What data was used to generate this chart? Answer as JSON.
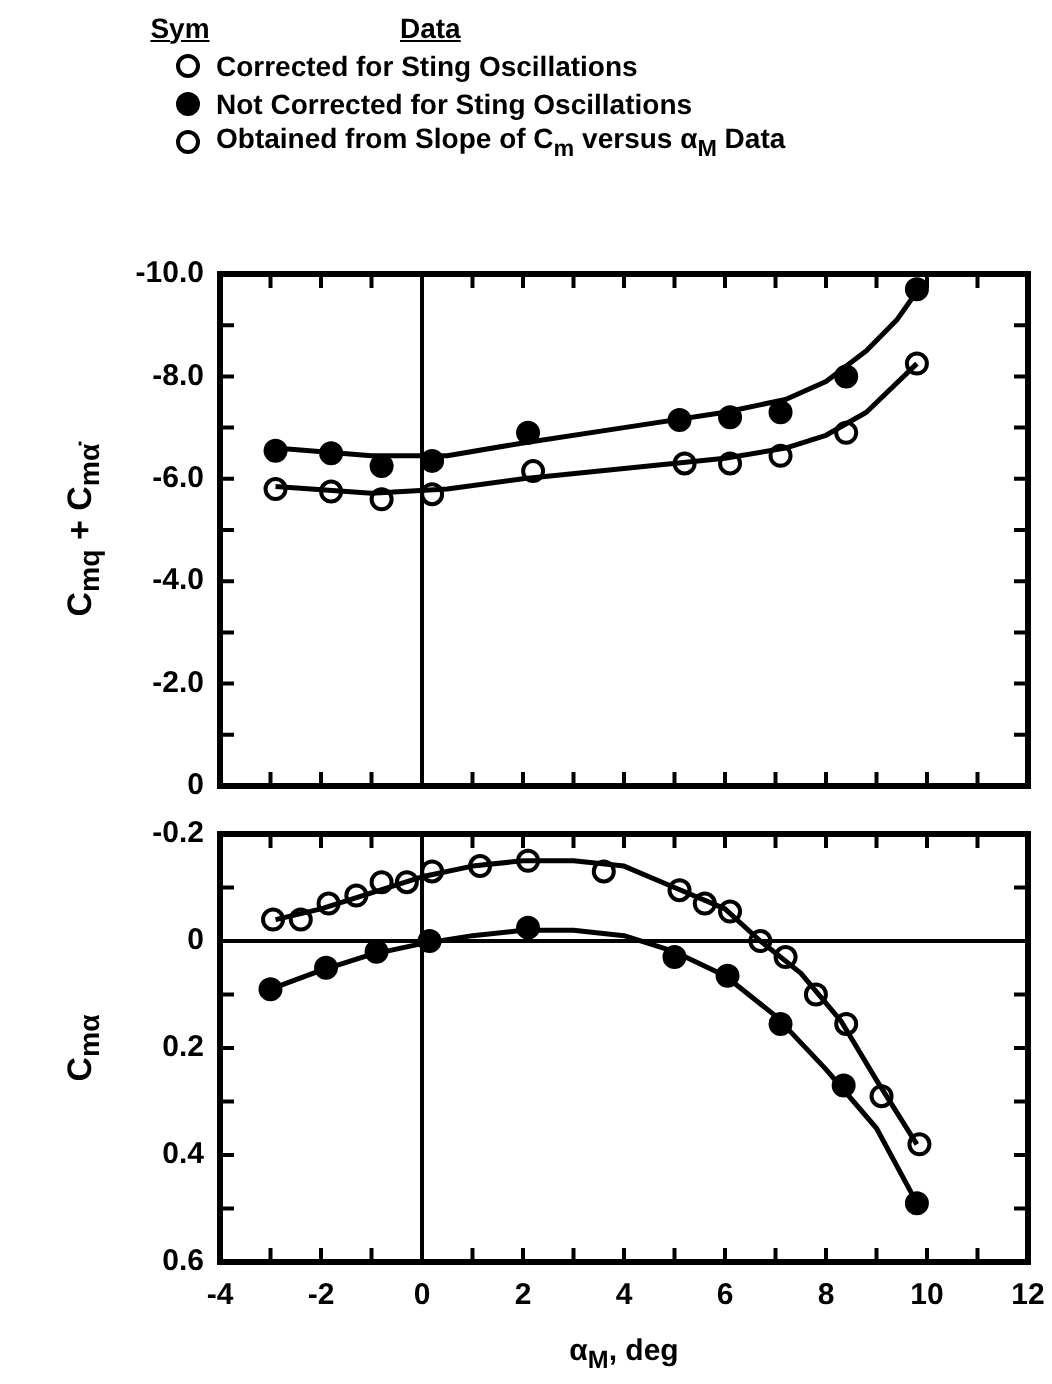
{
  "chart_data": [
    {
      "type": "scatter",
      "ylabel": "C$_{mq}$ + C$_{mα̇}$",
      "xlim": [
        -4,
        12
      ],
      "ylim": [
        0,
        -10
      ],
      "tick_labels": "y",
      "marker": "circle",
      "xticks": [
        -4,
        {
          "value": -3,
          "label": null
        },
        -2,
        {
          "value": -1,
          "label": null
        },
        0,
        {
          "value": 1,
          "label": null
        },
        2,
        {
          "value": 3,
          "label": null
        },
        4,
        {
          "value": 5,
          "label": null
        },
        6,
        {
          "value": 7,
          "label": null
        },
        8,
        {
          "value": 9,
          "label": null
        },
        10,
        {
          "value": 11,
          "label": null
        },
        12
      ],
      "yticks": [
        0,
        {
          "value": -1,
          "label": null
        },
        {
          "value": -2,
          "label": "-2.0"
        },
        {
          "value": -3,
          "label": null
        },
        {
          "value": -4,
          "label": "-4.0"
        },
        {
          "value": -5,
          "label": null
        },
        {
          "value": -6,
          "label": "-6.0"
        },
        {
          "value": -7,
          "label": null
        },
        {
          "value": -8,
          "label": "-8.0"
        },
        {
          "value": -9,
          "label": null
        },
        {
          "value": -10,
          "label": "-10.0"
        }
      ],
      "ref_lines": [
        {
          "axis": "x",
          "value": 0,
          "color": "#000000"
        }
      ],
      "series": [
        {
          "type": "line",
          "color": "#000000",
          "marker": "none",
          "x": [
            -2.9,
            -1,
            0.5,
            2,
            4,
            6,
            7.2,
            8,
            8.8,
            9.4,
            9.9
          ],
          "values": [
            -6.6,
            -6.45,
            -6.45,
            -6.7,
            -7.0,
            -7.3,
            -7.55,
            -7.9,
            -8.5,
            -9.1,
            -9.8
          ]
        },
        {
          "type": "line",
          "color": "#000000",
          "marker": "none",
          "x": [
            -2.9,
            -1,
            0.5,
            2,
            4,
            6,
            7.2,
            8,
            8.8,
            9.8
          ],
          "values": [
            -5.85,
            -5.72,
            -5.8,
            -6.0,
            -6.2,
            -6.4,
            -6.6,
            -6.85,
            -7.3,
            -8.25
          ]
        },
        {
          "color": "#000000",
          "x": [
            -2.9,
            -1.8,
            -0.8,
            0.2,
            2.1,
            5.1,
            6.1,
            7.1,
            8.4,
            9.8
          ],
          "values": [
            -6.55,
            -6.5,
            -6.25,
            -6.35,
            -6.9,
            -7.15,
            -7.2,
            -7.3,
            -8.0,
            -9.7
          ]
        },
        {
          "color": "#ffffff",
          "x": [
            -2.9,
            -1.8,
            -0.8,
            0.2,
            2.2,
            5.2,
            6.1,
            7.1,
            8.4,
            9.8
          ],
          "values": [
            -5.8,
            -5.75,
            -5.6,
            -5.7,
            -6.15,
            -6.3,
            -6.3,
            -6.45,
            -6.9,
            -8.25
          ]
        }
      ]
    },
    {
      "type": "scatter",
      "xlabel": "α$_{M}$, deg",
      "ylabel": "C$_{mα}$",
      "xlim": [
        -4,
        12
      ],
      "ylim": [
        0.6,
        -0.2
      ],
      "marker": "circle",
      "legend": "top",
      "legend_title": "Sym",
      "annotations": [
        "Data"
      ],
      "xticks": [
        -4,
        {
          "value": -3,
          "label": null
        },
        -2,
        {
          "value": -1,
          "label": null
        },
        0,
        {
          "value": 1,
          "label": null
        },
        2,
        {
          "value": 3,
          "label": null
        },
        4,
        {
          "value": 5,
          "label": null
        },
        6,
        {
          "value": 7,
          "label": null
        },
        8,
        {
          "value": 9,
          "label": null
        },
        10,
        {
          "value": 11,
          "label": null
        },
        12
      ],
      "yticks": [
        {
          "value": -0.2,
          "label": "-0.2"
        },
        {
          "value": -0.1,
          "label": null
        },
        0,
        {
          "value": 0.1,
          "label": null
        },
        0.2,
        {
          "value": 0.3,
          "label": null
        },
        0.4,
        {
          "value": 0.5,
          "label": null
        },
        0.6
      ],
      "ref_lines": [
        {
          "axis": "x",
          "value": 0,
          "color": "#000000"
        },
        {
          "axis": "y",
          "value": 0,
          "color": "#000000"
        }
      ],
      "series": [
        {
          "type": "line",
          "color": "#000000",
          "marker": "none",
          "x": [
            -2.9,
            -2,
            -1,
            0,
            1,
            2,
            3,
            4,
            5,
            6,
            6.7,
            7.5,
            8.3,
            9,
            9.8
          ],
          "values": [
            -0.04,
            -0.06,
            -0.09,
            -0.12,
            -0.14,
            -0.15,
            -0.15,
            -0.14,
            -0.1,
            -0.06,
            0.0,
            0.06,
            0.15,
            0.26,
            0.38
          ]
        },
        {
          "type": "line",
          "color": "#000000",
          "marker": "none",
          "x": [
            -3,
            -2,
            -1,
            0,
            1,
            2,
            3,
            4,
            5,
            6,
            7,
            8,
            9,
            9.8
          ],
          "values": [
            0.09,
            0.055,
            0.025,
            0.005,
            -0.01,
            -0.02,
            -0.02,
            -0.01,
            0.02,
            0.065,
            0.14,
            0.24,
            0.35,
            0.49
          ]
        },
        {
          "name": "Corrected for Sting Oscillations",
          "color": "#ffffff",
          "x": [
            -2.95,
            -1.85,
            -0.8,
            -0.3,
            0.2,
            2.1,
            5.1,
            6.1,
            7.2,
            8.4,
            9.85
          ],
          "values": [
            -0.04,
            -0.07,
            -0.11,
            -0.11,
            -0.13,
            -0.15,
            -0.095,
            -0.055,
            0.03,
            0.155,
            0.38
          ]
        },
        {
          "name": "Not Corrected for Sting Oscillations",
          "color": "#000000",
          "x": [
            -3.0,
            -1.9,
            -0.9,
            0.15,
            2.1,
            5.0,
            6.05,
            7.1,
            8.35,
            9.8
          ],
          "values": [
            0.09,
            0.05,
            0.02,
            0.0,
            -0.025,
            0.03,
            0.065,
            0.155,
            0.27,
            0.49
          ]
        },
        {
          "name": "Obtained from Slope of C$_{m}$ versus α$_{M}$ Data",
          "color": "#ffffff",
          "x": [
            -2.4,
            -1.3,
            1.15,
            3.6,
            5.6,
            6.7,
            7.8,
            9.1
          ],
          "values": [
            -0.04,
            -0.085,
            -0.14,
            -0.13,
            -0.07,
            0.0,
            0.1,
            0.29
          ]
        }
      ]
    }
  ]
}
